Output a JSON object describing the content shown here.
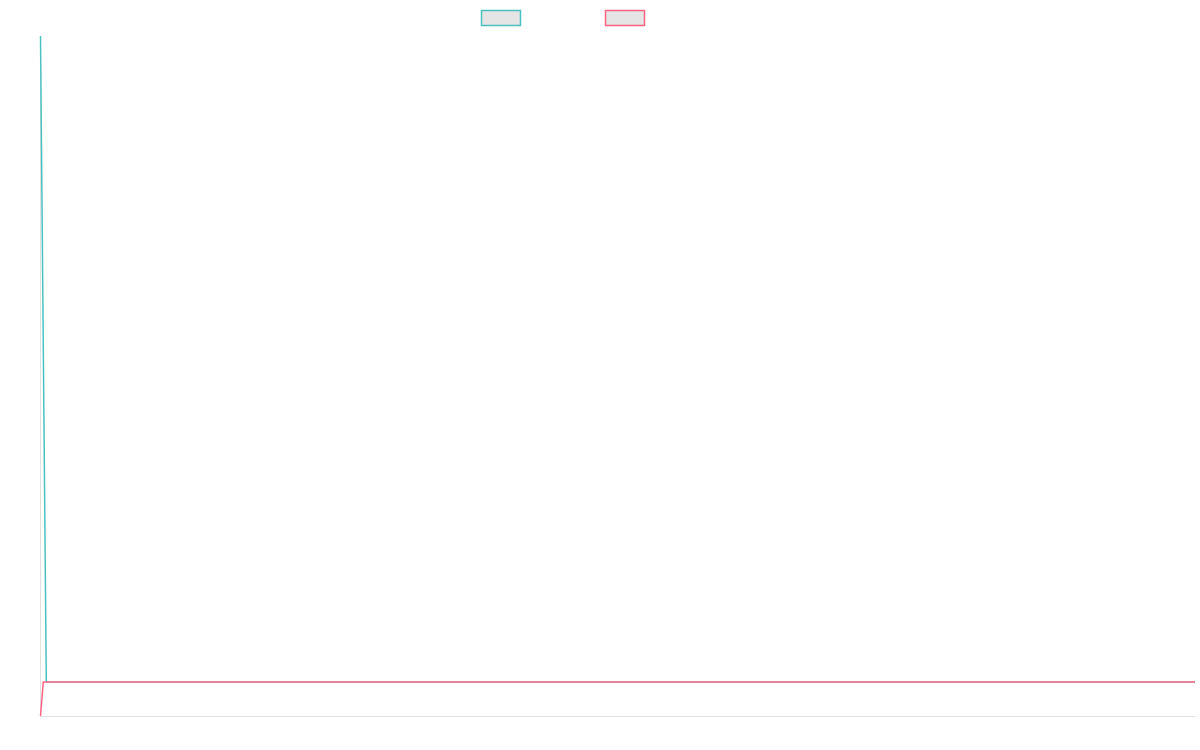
{
  "chart_data": {
    "type": "line",
    "title": "",
    "xlabel": "",
    "ylabel": "",
    "ylim": [
      0,
      100
    ],
    "grid": false,
    "legend_placement": "top",
    "series": [
      {
        "color": "#4bc0c0",
        "fill": "#e5e5e5",
        "values": [
          100,
          5,
          5,
          5,
          5,
          5,
          5,
          5,
          5,
          5,
          5,
          5,
          5,
          5,
          5,
          5,
          5,
          5,
          5,
          5,
          5,
          5,
          5,
          5,
          5,
          5,
          5,
          5,
          5,
          5,
          5,
          5,
          5,
          5,
          5,
          5,
          5,
          5,
          5,
          5,
          5,
          5,
          5,
          5,
          5,
          5,
          5,
          5,
          5,
          5,
          5,
          5,
          5,
          5,
          5,
          5,
          5,
          5,
          5,
          5,
          5,
          5,
          5,
          5,
          5,
          5,
          5,
          5,
          5,
          5,
          5,
          5,
          5,
          5,
          5,
          5,
          5,
          5,
          5,
          5,
          5,
          5,
          5,
          5,
          5,
          5,
          5,
          5,
          5,
          5,
          5,
          5,
          5,
          5,
          5,
          5,
          5,
          5,
          5,
          5,
          5,
          5,
          5,
          5,
          5,
          5,
          5,
          5,
          5,
          5,
          5,
          5,
          5,
          5,
          5,
          5,
          5,
          5,
          5,
          5,
          5,
          5,
          5,
          5,
          5,
          5,
          5,
          5,
          5,
          5,
          5,
          5,
          5,
          5,
          5,
          5,
          5,
          5,
          5,
          5,
          5,
          5,
          5,
          5,
          5,
          5,
          5,
          5,
          5,
          5,
          5,
          5,
          5,
          5,
          5,
          5,
          5,
          5,
          5,
          5,
          5,
          5,
          5,
          5,
          5,
          5,
          5,
          5,
          5,
          5,
          5,
          5,
          5,
          5,
          5,
          5,
          5,
          5,
          5,
          5,
          5,
          5,
          5,
          5,
          5,
          5,
          5,
          5,
          5,
          5,
          5,
          5,
          5,
          5,
          5,
          5,
          5,
          5,
          5,
          5
        ]
      },
      {
        "color": "#ff6384",
        "fill": "#e5e5e5",
        "values": [
          0,
          5,
          5,
          5,
          5,
          5,
          5,
          5,
          5,
          5,
          5,
          5,
          5,
          5,
          5,
          5,
          5,
          5,
          5,
          5,
          5,
          5,
          5,
          5,
          5,
          5,
          5,
          5,
          5,
          5,
          5,
          5,
          5,
          5,
          5,
          5,
          5,
          5,
          5,
          5,
          5,
          5,
          5,
          5,
          5,
          5,
          5,
          5,
          5,
          5,
          5,
          5,
          5,
          5,
          5,
          5,
          5,
          5,
          5,
          5,
          5,
          5,
          5,
          5,
          5,
          5,
          5,
          5,
          5,
          5,
          5,
          5,
          5,
          5,
          5,
          5,
          5,
          5,
          5,
          5,
          5,
          5,
          5,
          5,
          5,
          5,
          5,
          5,
          5,
          5,
          5,
          5,
          5,
          5,
          5,
          5,
          5,
          5,
          5,
          5,
          5,
          5,
          5,
          5,
          5,
          5,
          5,
          5,
          5,
          5,
          5,
          5,
          5,
          5,
          5,
          5,
          5,
          5,
          5,
          5,
          5,
          5,
          5,
          5,
          5,
          5,
          5,
          5,
          5,
          5,
          5,
          5,
          5,
          5,
          5,
          5,
          5,
          5,
          5,
          5,
          5,
          5,
          5,
          5,
          5,
          5,
          5,
          5,
          5,
          5,
          5,
          5,
          5,
          5,
          5,
          5,
          5,
          5,
          5,
          5,
          5,
          5,
          5,
          5,
          5,
          5,
          5,
          5,
          5,
          5,
          5,
          5,
          5,
          5,
          5,
          5,
          5,
          5,
          5,
          5,
          5,
          5,
          5,
          5,
          5,
          5,
          5,
          5,
          5,
          5,
          5,
          5,
          5,
          5,
          5,
          5,
          5,
          5,
          5,
          5,
          5,
          5,
          5,
          5,
          5,
          5,
          5,
          5,
          5,
          5,
          5,
          5,
          5,
          5,
          5,
          5,
          5,
          5,
          5,
          5,
          5,
          5,
          5,
          5,
          5,
          5,
          5,
          5,
          5,
          5,
          5,
          5,
          5,
          5,
          5,
          5,
          5,
          5,
          5,
          5,
          5,
          5,
          5,
          5,
          5,
          5,
          5,
          5,
          5,
          5,
          5,
          5,
          5,
          5,
          5,
          5,
          5,
          5,
          5,
          5,
          5,
          5,
          5,
          5,
          5,
          5,
          5,
          5,
          5,
          5,
          5,
          5,
          5,
          5,
          5,
          5,
          5,
          5,
          5,
          5,
          5,
          5,
          5,
          5,
          5,
          5,
          5,
          5,
          5,
          5,
          5,
          5,
          5,
          5,
          5,
          5,
          5,
          5,
          5,
          5,
          5,
          5,
          5,
          5,
          5,
          5,
          5,
          5,
          5,
          5,
          5,
          5,
          5,
          5,
          5,
          5,
          5,
          5,
          5,
          5,
          5,
          5,
          5,
          5,
          5,
          5,
          5,
          5,
          5,
          5,
          5,
          5,
          5,
          5,
          5,
          5,
          5,
          5,
          5,
          5,
          5,
          5,
          5,
          5,
          5,
          5,
          5,
          5,
          5,
          5,
          5,
          5,
          5,
          5,
          5,
          5,
          5,
          5,
          5,
          5,
          5,
          5,
          5,
          5,
          5,
          5,
          5,
          5,
          5,
          5,
          5,
          5,
          5,
          5,
          5,
          5,
          5,
          5,
          5,
          5,
          5,
          5,
          5,
          5,
          5,
          5,
          5,
          5,
          5,
          5,
          5,
          5,
          5,
          5,
          5,
          5,
          5,
          5,
          5,
          5,
          5,
          5,
          5,
          5,
          5,
          5,
          5,
          5,
          5,
          5,
          5
        ]
      }
    ]
  }
}
